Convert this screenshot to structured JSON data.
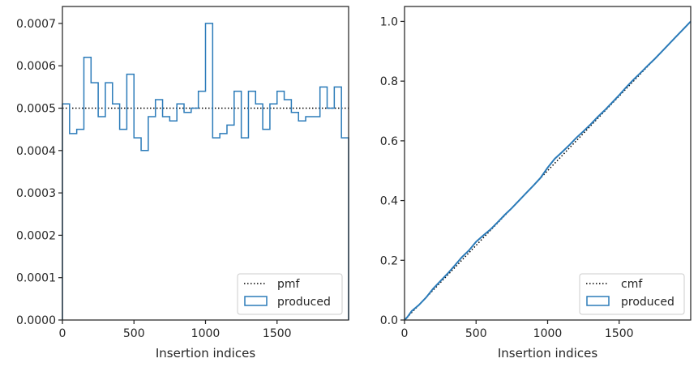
{
  "chart_data": [
    {
      "type": "line",
      "xlabel": "Insertion indices",
      "ylabel": "",
      "xlim": [
        0,
        2000
      ],
      "ylim": [
        0,
        0.00074
      ],
      "x_ticks": [
        0,
        500,
        1000,
        1500
      ],
      "x_tick_labels": [
        "0",
        "500",
        "1000",
        "1500"
      ],
      "y_ticks": [
        0,
        0.0001,
        0.0002,
        0.0003,
        0.0004,
        0.0005,
        0.0006,
        0.0007
      ],
      "y_tick_labels": [
        "0.0000",
        "0.0001",
        "0.0002",
        "0.0003",
        "0.0004",
        "0.0005",
        "0.0006",
        "0.0007"
      ],
      "grid": false,
      "legend_position": "lower-right",
      "series": [
        {
          "name": "pmf",
          "style": "dotted",
          "color": "#000000",
          "x": [
            0,
            2000
          ],
          "y": [
            0.0005,
            0.0005
          ]
        },
        {
          "name": "produced",
          "style": "step-histogram",
          "color": "#2b7bb9",
          "bin_edges": [
            0,
            50,
            100,
            150,
            200,
            250,
            300,
            350,
            400,
            450,
            500,
            550,
            600,
            650,
            700,
            750,
            800,
            850,
            900,
            950,
            1000,
            1050,
            1100,
            1150,
            1200,
            1250,
            1300,
            1350,
            1400,
            1450,
            1500,
            1550,
            1600,
            1650,
            1700,
            1750,
            1800,
            1850,
            1900,
            1950,
            2000
          ],
          "values": [
            0.00051,
            0.00044,
            0.00045,
            0.00062,
            0.00056,
            0.00048,
            0.00056,
            0.00051,
            0.00045,
            0.00058,
            0.00043,
            0.0004,
            0.00048,
            0.00052,
            0.00048,
            0.00047,
            0.00051,
            0.00049,
            0.0005,
            0.00054,
            0.0007,
            0.00043,
            0.00044,
            0.00046,
            0.00054,
            0.00043,
            0.00054,
            0.00051,
            0.00045,
            0.00051,
            0.00054,
            0.00052,
            0.00049,
            0.00047,
            0.00048,
            0.00048,
            0.00055,
            0.0005,
            0.00055,
            0.00043
          ]
        }
      ]
    },
    {
      "type": "line",
      "xlabel": "Insertion indices",
      "ylabel": "",
      "xlim": [
        0,
        2000
      ],
      "ylim": [
        0,
        1.05
      ],
      "x_ticks": [
        0,
        500,
        1000,
        1500
      ],
      "x_tick_labels": [
        "0",
        "500",
        "1000",
        "1500"
      ],
      "y_ticks": [
        0,
        0.2,
        0.4,
        0.6,
        0.8,
        1.0
      ],
      "y_tick_labels": [
        "0.0",
        "0.2",
        "0.4",
        "0.6",
        "0.8",
        "1.0"
      ],
      "grid": false,
      "legend_position": "lower-right",
      "series": [
        {
          "name": "cmf",
          "style": "dotted",
          "color": "#000000",
          "x": [
            0,
            2000
          ],
          "y": [
            0,
            1.0
          ]
        },
        {
          "name": "produced",
          "style": "solid",
          "color": "#2b7bb9",
          "x": [
            0,
            20,
            50,
            100,
            150,
            200,
            250,
            300,
            350,
            400,
            450,
            500,
            550,
            600,
            650,
            700,
            750,
            800,
            850,
            900,
            950,
            1000,
            1050,
            1100,
            1150,
            1200,
            1250,
            1300,
            1350,
            1400,
            1450,
            1500,
            1550,
            1600,
            1650,
            1700,
            1750,
            1800,
            1850,
            1900,
            1950,
            2000
          ],
          "y": [
            0,
            0.01,
            0.03,
            0.05,
            0.075,
            0.105,
            0.13,
            0.155,
            0.182,
            0.21,
            0.233,
            0.262,
            0.283,
            0.303,
            0.327,
            0.352,
            0.375,
            0.4,
            0.425,
            0.45,
            0.476,
            0.51,
            0.54,
            0.562,
            0.585,
            0.61,
            0.632,
            0.655,
            0.68,
            0.703,
            0.728,
            0.753,
            0.78,
            0.805,
            0.828,
            0.852,
            0.875,
            0.9,
            0.925,
            0.95,
            0.975,
            1.0
          ]
        }
      ]
    }
  ]
}
